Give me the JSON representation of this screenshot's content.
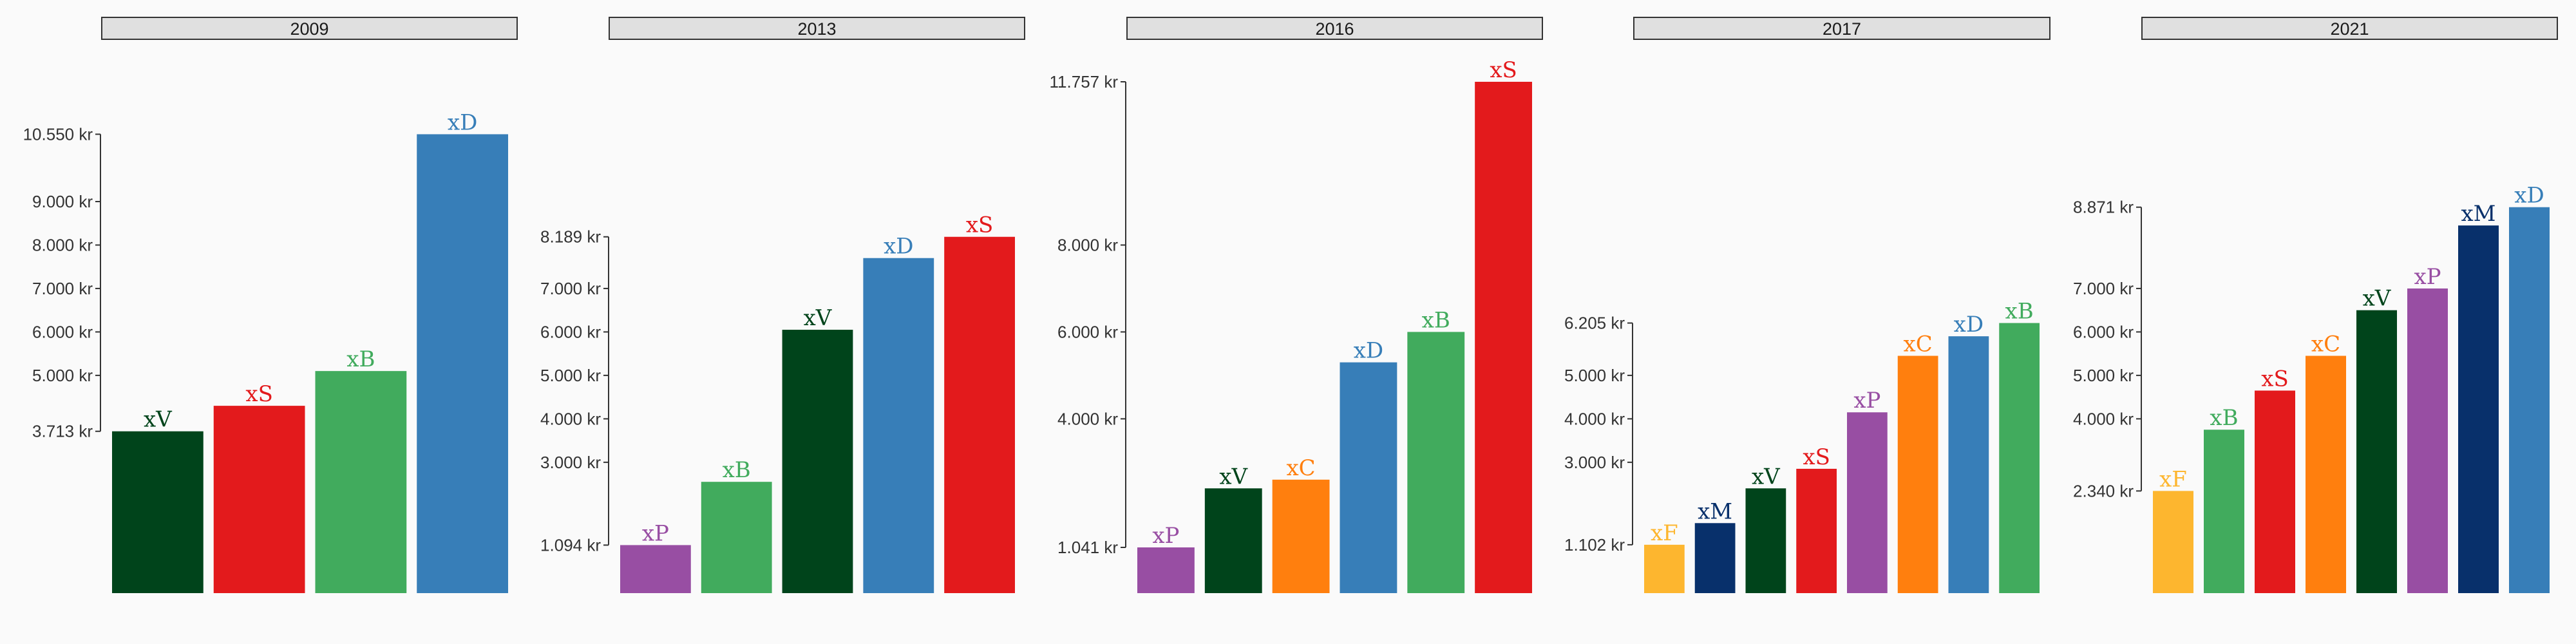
{
  "chart_data": {
    "type": "bar",
    "layout": "small-multiples",
    "tick_suffix": " kr",
    "colors": {
      "xV": "#00441b",
      "xS": "#e31a1c",
      "xB": "#41ab5d",
      "xD": "#377eb8",
      "xP": "#984ea3",
      "xC": "#ff7f0e",
      "xF": "#fdb62f",
      "xM": "#08306b"
    },
    "panels": [
      {
        "title": "2009",
        "categories": [
          "xV",
          "xS",
          "xB",
          "xD"
        ],
        "values": [
          3713,
          4300,
          5100,
          10550
        ],
        "ytick_labels": [
          "3.713 kr",
          "5.000 kr",
          "6.000 kr",
          "7.000 kr",
          "8.000 kr",
          "9.000 kr",
          "10.550 kr"
        ],
        "ytick_values": [
          3713,
          5000,
          6000,
          7000,
          8000,
          9000,
          10550
        ]
      },
      {
        "title": "2013",
        "categories": [
          "xP",
          "xB",
          "xV",
          "xD",
          "xS"
        ],
        "values": [
          1094,
          2550,
          6050,
          7700,
          8189
        ],
        "ytick_labels": [
          "1.094 kr",
          "3.000 kr",
          "4.000 kr",
          "5.000 kr",
          "6.000 kr",
          "7.000 kr",
          "8.189 kr"
        ],
        "ytick_values": [
          1094,
          3000,
          4000,
          5000,
          6000,
          7000,
          8189
        ]
      },
      {
        "title": "2016",
        "categories": [
          "xP",
          "xV",
          "xC",
          "xD",
          "xB",
          "xS"
        ],
        "values": [
          1041,
          2400,
          2600,
          5300,
          6000,
          11757
        ],
        "ytick_labels": [
          "1.041 kr",
          "4.000 kr",
          "6.000 kr",
          "8.000 kr",
          "11.757 kr"
        ],
        "ytick_values": [
          1041,
          4000,
          6000,
          8000,
          11757
        ]
      },
      {
        "title": "2017",
        "categories": [
          "xF",
          "xM",
          "xV",
          "xS",
          "xP",
          "xC",
          "xD",
          "xB"
        ],
        "values": [
          1102,
          1600,
          2400,
          2850,
          4150,
          5450,
          5900,
          6205
        ],
        "ytick_labels": [
          "1.102 kr",
          "3.000 kr",
          "4.000 kr",
          "5.000 kr",
          "6.205 kr"
        ],
        "ytick_values": [
          1102,
          3000,
          4000,
          5000,
          6205
        ]
      },
      {
        "title": "2021",
        "categories": [
          "xF",
          "xB",
          "xS",
          "xC",
          "xV",
          "xP",
          "xM",
          "xD"
        ],
        "values": [
          2340,
          3750,
          4650,
          5450,
          6500,
          7000,
          8450,
          8871
        ],
        "ytick_labels": [
          "2.340 kr",
          "4.000 kr",
          "5.000 kr",
          "6.000 kr",
          "7.000 kr",
          "8.871 kr"
        ],
        "ytick_values": [
          2340,
          4000,
          5000,
          6000,
          7000,
          8871
        ]
      }
    ]
  }
}
